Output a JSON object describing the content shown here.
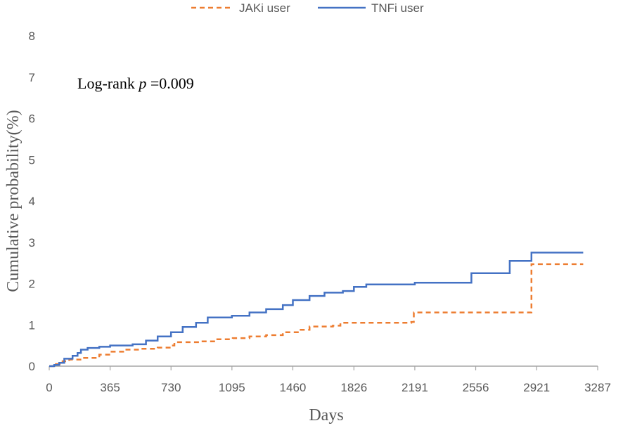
{
  "chart_data": {
    "type": "line",
    "subtype": "step (Kaplan-Meier cumulative incidence)",
    "title": "",
    "xlabel": "Days",
    "ylabel": "Cumulative probability(%)",
    "xlim": [
      0,
      3287
    ],
    "ylim": [
      0,
      8
    ],
    "x_ticks": [
      "0",
      "365",
      "730",
      "1095",
      "1460",
      "1826",
      "2191",
      "2556",
      "2921",
      "3287"
    ],
    "y_ticks": [
      "0",
      "1",
      "2",
      "3",
      "4",
      "5",
      "6",
      "7",
      "8"
    ],
    "grid": false,
    "legend_position": "top-center",
    "annotation": {
      "prefix": "Log-rank ",
      "italic": "p",
      "suffix": " =0.009"
    },
    "series": [
      {
        "name": "JAKi user",
        "color": "#ED7D31",
        "line_style": "dashed",
        "points": [
          [
            0,
            0
          ],
          [
            40,
            0.05
          ],
          [
            80,
            0.12
          ],
          [
            120,
            0.16
          ],
          [
            200,
            0.2
          ],
          [
            300,
            0.28
          ],
          [
            365,
            0.35
          ],
          [
            450,
            0.4
          ],
          [
            550,
            0.42
          ],
          [
            650,
            0.45
          ],
          [
            730,
            0.5
          ],
          [
            750,
            0.58
          ],
          [
            900,
            0.6
          ],
          [
            1000,
            0.65
          ],
          [
            1100,
            0.68
          ],
          [
            1200,
            0.72
          ],
          [
            1300,
            0.75
          ],
          [
            1400,
            0.82
          ],
          [
            1500,
            0.88
          ],
          [
            1560,
            0.96
          ],
          [
            1700,
            0.98
          ],
          [
            1745,
            1.05
          ],
          [
            2000,
            1.05
          ],
          [
            2170,
            1.07
          ],
          [
            2185,
            1.3
          ],
          [
            2500,
            1.3
          ],
          [
            2885,
            1.3
          ],
          [
            2890,
            2.47
          ],
          [
            3200,
            2.47
          ]
        ]
      },
      {
        "name": "TNFi user",
        "color": "#4472C4",
        "line_style": "solid",
        "points": [
          [
            0,
            0
          ],
          [
            30,
            0.03
          ],
          [
            60,
            0.08
          ],
          [
            90,
            0.18
          ],
          [
            140,
            0.25
          ],
          [
            170,
            0.32
          ],
          [
            190,
            0.4
          ],
          [
            230,
            0.44
          ],
          [
            300,
            0.47
          ],
          [
            365,
            0.5
          ],
          [
            500,
            0.53
          ],
          [
            580,
            0.62
          ],
          [
            650,
            0.72
          ],
          [
            730,
            0.82
          ],
          [
            800,
            0.95
          ],
          [
            880,
            1.05
          ],
          [
            950,
            1.18
          ],
          [
            1095,
            1.22
          ],
          [
            1200,
            1.3
          ],
          [
            1300,
            1.38
          ],
          [
            1400,
            1.48
          ],
          [
            1460,
            1.6
          ],
          [
            1560,
            1.7
          ],
          [
            1650,
            1.78
          ],
          [
            1760,
            1.82
          ],
          [
            1826,
            1.92
          ],
          [
            1900,
            1.98
          ],
          [
            2191,
            2.02
          ],
          [
            2520,
            2.02
          ],
          [
            2530,
            2.25
          ],
          [
            2750,
            2.25
          ],
          [
            2760,
            2.55
          ],
          [
            2880,
            2.55
          ],
          [
            2890,
            2.75
          ],
          [
            3200,
            2.75
          ]
        ]
      }
    ]
  },
  "colors": {
    "axis": "#A6A6A6",
    "text": "#595959"
  }
}
